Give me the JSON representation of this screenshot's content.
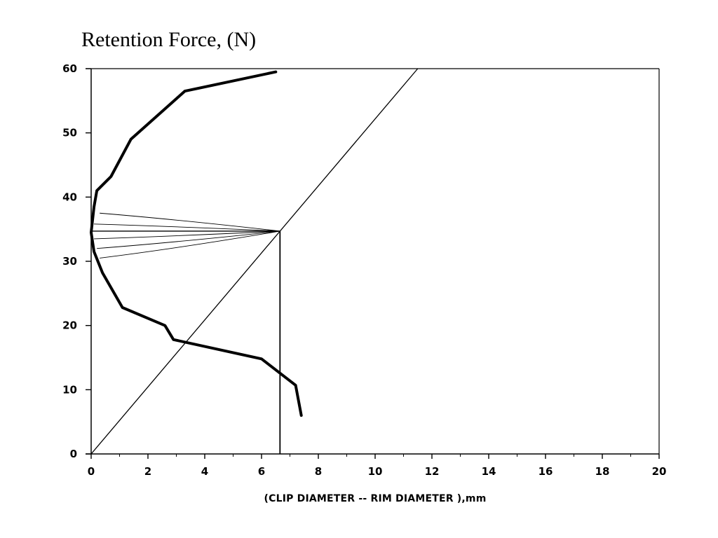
{
  "chart_data": {
    "type": "line",
    "title": "Retention Force, (N)",
    "xlabel": "(CLIP DIAMETER -- RIM DIAMETER ),mm",
    "ylabel": "",
    "xlim": [
      0,
      20
    ],
    "ylim": [
      0,
      60
    ],
    "x_ticks": [
      0,
      2,
      4,
      6,
      8,
      10,
      12,
      14,
      16,
      18,
      20
    ],
    "y_ticks": [
      0,
      10,
      20,
      30,
      40,
      50,
      60
    ],
    "grid": false,
    "series": [
      {
        "role": "curve",
        "points": [
          [
            6.5,
            59.5
          ],
          [
            3.3,
            56.5
          ],
          [
            1.4,
            49
          ],
          [
            0.7,
            43.2
          ],
          [
            0.2,
            41
          ],
          [
            0.1,
            38.5
          ],
          [
            0.0,
            34.5
          ],
          [
            0.1,
            31.5
          ],
          [
            0.4,
            28.2
          ],
          [
            1.1,
            22.8
          ],
          [
            2.6,
            20.0
          ],
          [
            2.9,
            17.8
          ],
          [
            6.0,
            14.8
          ],
          [
            7.2,
            10.7
          ],
          [
            7.4,
            6.0
          ]
        ]
      },
      {
        "role": "diagonal",
        "points": [
          [
            0,
            0
          ],
          [
            11.5,
            60
          ]
        ]
      },
      {
        "role": "vertical",
        "points": [
          [
            6.65,
            0
          ],
          [
            6.65,
            34.7
          ]
        ]
      },
      {
        "role": "horizontal",
        "points": [
          [
            0,
            34.7
          ],
          [
            6.65,
            34.7
          ]
        ]
      }
    ],
    "spikes": {
      "tip": [
        6.65,
        34.7
      ],
      "rows": [
        {
          "y_start": 37.5,
          "base_x": 0.3
        },
        {
          "y_start": 35.8,
          "base_x": 0.1
        },
        {
          "y_start": 33.5,
          "base_x": 0.1
        },
        {
          "y_start": 32.0,
          "base_x": 0.2
        },
        {
          "y_start": 30.5,
          "base_x": 0.3
        }
      ]
    },
    "line_color": "#000000"
  }
}
